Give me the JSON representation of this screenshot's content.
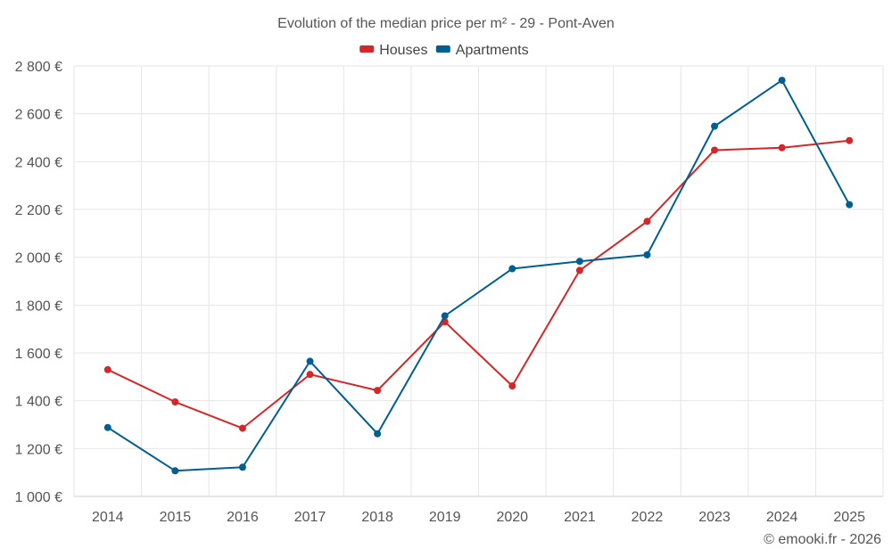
{
  "chart_data": {
    "type": "line",
    "title": "Evolution of the median price per m² - 29 - Pont-Aven",
    "categories": [
      "2014",
      "2015",
      "2016",
      "2017",
      "2018",
      "2019",
      "2020",
      "2021",
      "2022",
      "2023",
      "2024",
      "2025"
    ],
    "series": [
      {
        "name": "Houses",
        "color": "#d62728",
        "values": [
          1530,
          1395,
          1285,
          1510,
          1443,
          1730,
          1462,
          1945,
          2150,
          2448,
          2458,
          2488
        ]
      },
      {
        "name": "Apartments",
        "color": "#005f91",
        "values": [
          1288,
          1107,
          1122,
          1565,
          1262,
          1755,
          1952,
          1983,
          2010,
          2548,
          2740,
          2220
        ]
      }
    ],
    "y_ticks": [
      "1 000 €",
      "1 200 €",
      "1 400 €",
      "1 600 €",
      "1 800 €",
      "2 000 €",
      "2 200 €",
      "2 400 €",
      "2 600 €",
      "2 800 €"
    ],
    "y_tick_values": [
      1000,
      1200,
      1400,
      1600,
      1800,
      2000,
      2200,
      2400,
      2600,
      2800
    ],
    "ylim": [
      1000,
      2800
    ],
    "xlabel": "",
    "ylabel": "",
    "grid": true,
    "legend": "top-center"
  },
  "credit": "© emooki.fr - 2026"
}
